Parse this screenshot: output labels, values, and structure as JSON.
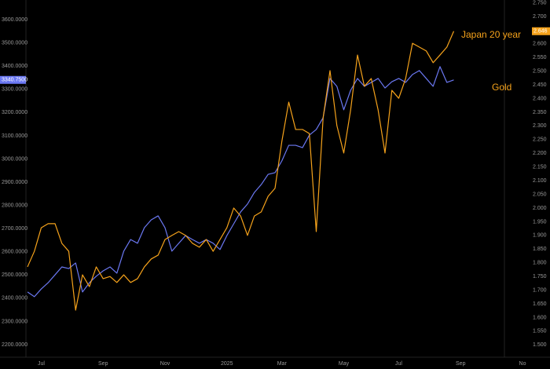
{
  "chart_data": {
    "type": "line",
    "categories": [
      null,
      null,
      "Jul",
      null,
      null,
      null,
      null,
      null,
      null,
      null,
      null,
      "Sep",
      null,
      null,
      null,
      null,
      null,
      null,
      null,
      null,
      "Nov",
      null,
      null,
      null,
      null,
      null,
      null,
      null,
      null,
      "2025",
      null,
      null,
      null,
      null,
      null,
      null,
      null,
      "Mar",
      null,
      null,
      null,
      null,
      null,
      null,
      null,
      null,
      "May",
      null,
      null,
      null,
      null,
      null,
      null,
      null,
      "Jul",
      null,
      null,
      null,
      null,
      null,
      null,
      null,
      null,
      "Sep",
      null,
      null,
      null,
      null,
      null,
      null,
      null,
      null,
      "No"
    ],
    "series": [
      {
        "name": "Gold",
        "color": "#6b78f2",
        "axis": "y",
        "values": [
          2427,
          2407,
          2440,
          2467,
          2501,
          2535,
          2528,
          2552,
          2427,
          2467,
          2495,
          2518,
          2535,
          2508,
          2603,
          2653,
          2637,
          2704,
          2738,
          2755,
          2704,
          2603,
          2637,
          2670,
          2653,
          2637,
          2653,
          2637,
          2610,
          2670,
          2721,
          2772,
          2806,
          2856,
          2890,
          2934,
          2941,
          2992,
          3059,
          3059,
          3049,
          3103,
          3127,
          3178,
          3347,
          3313,
          3212,
          3296,
          3347,
          3313,
          3330,
          3347,
          3306,
          3333,
          3347,
          3330,
          3364,
          3381,
          3347,
          3313,
          3398,
          3330,
          3340.75,
          null,
          null,
          null,
          null,
          null,
          null,
          null,
          null,
          null,
          null
        ],
        "value_labels": [
          null,
          null,
          null,
          null,
          null,
          null,
          null,
          null,
          null,
          null,
          null,
          null,
          null,
          null,
          null,
          null,
          null,
          null,
          null,
          null,
          null,
          null,
          null,
          null,
          null,
          null,
          null,
          null,
          null,
          null,
          null,
          null,
          null,
          null,
          null,
          null,
          null,
          null,
          null,
          null,
          null,
          null,
          null,
          null,
          null,
          null,
          null,
          null,
          null,
          null,
          null,
          null,
          null,
          null,
          null,
          null,
          null,
          null,
          null,
          null,
          null,
          null,
          "3340.7500",
          null,
          null,
          null,
          null,
          null,
          null,
          null,
          null,
          null,
          null
        ]
      },
      {
        "name": "Japan 20 year",
        "color": "#f5a21b",
        "axis": "y2",
        "values": [
          1.785,
          1.842,
          1.928,
          1.943,
          1.943,
          1.871,
          1.842,
          1.627,
          1.756,
          1.713,
          1.785,
          1.742,
          1.75,
          1.728,
          1.756,
          1.728,
          1.742,
          1.785,
          1.814,
          1.828,
          1.885,
          1.9,
          1.914,
          1.9,
          1.871,
          1.857,
          1.885,
          1.842,
          1.885,
          1.928,
          2.0,
          1.971,
          1.9,
          1.971,
          1.986,
          2.043,
          2.072,
          2.244,
          2.387,
          2.287,
          2.287,
          2.272,
          1.914,
          2.33,
          2.502,
          2.301,
          2.201,
          2.358,
          2.559,
          2.445,
          2.473,
          2.358,
          2.201,
          2.43,
          2.401,
          2.473,
          2.602,
          2.588,
          2.574,
          2.531,
          2.559,
          2.588,
          2.646,
          null,
          null,
          null,
          null,
          null,
          null,
          null,
          null,
          null,
          null
        ],
        "value_labels": [
          null,
          null,
          null,
          null,
          null,
          null,
          null,
          null,
          null,
          null,
          null,
          null,
          null,
          null,
          null,
          null,
          null,
          null,
          null,
          null,
          null,
          null,
          null,
          null,
          null,
          null,
          null,
          null,
          null,
          null,
          null,
          null,
          null,
          null,
          null,
          null,
          null,
          null,
          null,
          null,
          null,
          null,
          null,
          null,
          null,
          null,
          null,
          null,
          null,
          null,
          null,
          null,
          null,
          null,
          null,
          null,
          null,
          null,
          null,
          null,
          null,
          null,
          "2.646",
          null,
          null,
          null,
          null,
          null,
          null,
          null,
          null,
          null,
          null
        ]
      }
    ],
    "ylim": [
      2146,
      3685
    ],
    "yticks": [
      {
        "value": 2200,
        "label": "2200.0000"
      },
      {
        "value": 2300,
        "label": "2300.0000"
      },
      {
        "value": 2400,
        "label": "2400.0000"
      },
      {
        "value": 2500,
        "label": "2500.0000"
      },
      {
        "value": 2600,
        "label": "2600.0000"
      },
      {
        "value": 2700,
        "label": "2700.0000"
      },
      {
        "value": 2800,
        "label": "2800.0000"
      },
      {
        "value": 2900,
        "label": "2900.0000"
      },
      {
        "value": 3000,
        "label": "3000.0000"
      },
      {
        "value": 3100,
        "label": "3100.0000"
      },
      {
        "value": 3200,
        "label": "3200.0000"
      },
      {
        "value": 3300,
        "label": "3300.0000"
      },
      {
        "value": 3400,
        "label": "3400.0000"
      },
      {
        "value": 3500,
        "label": "3500.0000"
      },
      {
        "value": 3600,
        "label": "3600.0000"
      }
    ],
    "y2lim": [
      1.455,
      2.76
    ],
    "y2ticks": [
      {
        "value": 1.5,
        "label": "1.500"
      },
      {
        "value": 1.55,
        "label": "1.550"
      },
      {
        "value": 1.6,
        "label": "1.600"
      },
      {
        "value": 1.65,
        "label": "1.650"
      },
      {
        "value": 1.7,
        "label": "1.700"
      },
      {
        "value": 1.75,
        "label": "1.750"
      },
      {
        "value": 1.8,
        "label": "1.800"
      },
      {
        "value": 1.85,
        "label": "1.850"
      },
      {
        "value": 1.9,
        "label": "1.900"
      },
      {
        "value": 1.95,
        "label": "1.950"
      },
      {
        "value": 2.0,
        "label": "2.000"
      },
      {
        "value": 2.05,
        "label": "2.050"
      },
      {
        "value": 2.1,
        "label": "2.100"
      },
      {
        "value": 2.15,
        "label": "2.150"
      },
      {
        "value": 2.2,
        "label": "2.200"
      },
      {
        "value": 2.25,
        "label": "2.250"
      },
      {
        "value": 2.3,
        "label": "2.300"
      },
      {
        "value": 2.35,
        "label": "2.350"
      },
      {
        "value": 2.4,
        "label": "2.400"
      },
      {
        "value": 2.45,
        "label": "2.450"
      },
      {
        "value": 2.5,
        "label": "2.500"
      },
      {
        "value": 2.55,
        "label": "2.550"
      },
      {
        "value": 2.6,
        "label": "2.600"
      },
      {
        "value": 2.65,
        "label": "2.650"
      },
      {
        "value": 2.7,
        "label": "2.700"
      },
      {
        "value": 2.75,
        "label": "2.750"
      }
    ],
    "grid": false
  }
}
